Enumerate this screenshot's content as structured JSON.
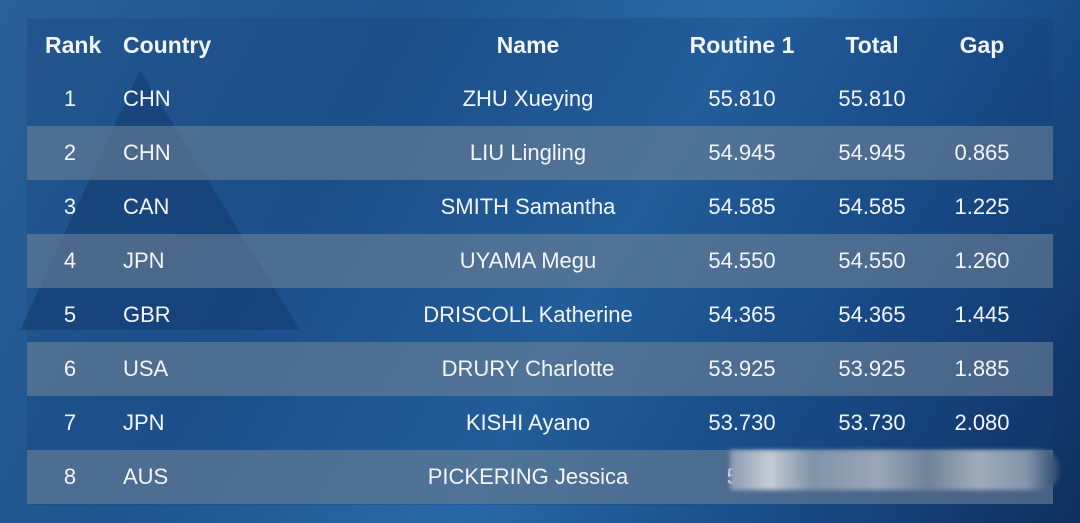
{
  "headers": {
    "rank": "Rank",
    "country": "Country",
    "name": "Name",
    "routine1": "Routine 1",
    "total": "Total",
    "gap": "Gap"
  },
  "rows": [
    {
      "rank": "1",
      "country": "CHN",
      "name": "ZHU Xueying",
      "routine1": "55.810",
      "total": "55.810",
      "gap": ""
    },
    {
      "rank": "2",
      "country": "CHN",
      "name": "LIU Lingling",
      "routine1": "54.945",
      "total": "54.945",
      "gap": "0.865"
    },
    {
      "rank": "3",
      "country": "CAN",
      "name": "SMITH Samantha",
      "routine1": "54.585",
      "total": "54.585",
      "gap": "1.225"
    },
    {
      "rank": "4",
      "country": "JPN",
      "name": "UYAMA Megu",
      "routine1": "54.550",
      "total": "54.550",
      "gap": "1.260"
    },
    {
      "rank": "5",
      "country": "GBR",
      "name": "DRISCOLL Katherine",
      "routine1": "54.365",
      "total": "54.365",
      "gap": "1.445"
    },
    {
      "rank": "6",
      "country": "USA",
      "name": "DRURY Charlotte",
      "routine1": "53.925",
      "total": "53.925",
      "gap": "1.885"
    },
    {
      "rank": "7",
      "country": "JPN",
      "name": "KISHI Ayano",
      "routine1": "53.730",
      "total": "53.730",
      "gap": "2.080"
    },
    {
      "rank": "8",
      "country": "AUS",
      "name": "PICKERING Jessica",
      "routine1": "53.",
      "total": "",
      "gap": ""
    }
  ]
}
